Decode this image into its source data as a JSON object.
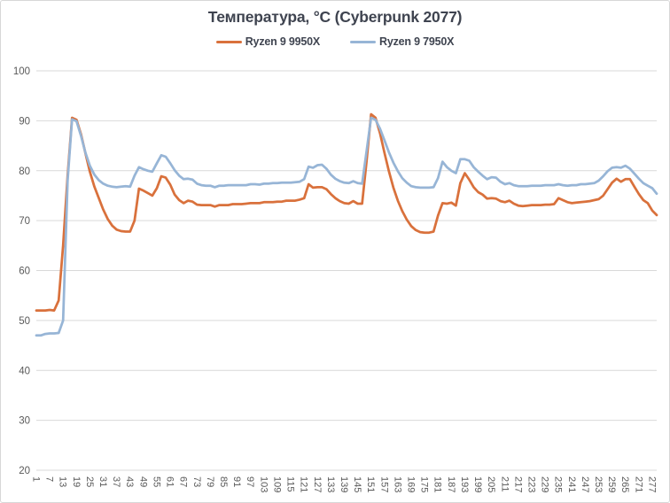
{
  "window": {
    "background_color": "#ffffff",
    "border_color": "#d7d7d7"
  },
  "chart_data": {
    "type": "line",
    "title": "Температура, °C (Cyberpunk 2077)",
    "xlabel": "",
    "ylabel": "",
    "legend_position": "top",
    "grid": "horizontal-only",
    "grid_color": "#d9d9d9",
    "axis_text_color": "#595959",
    "title_text_color": "#3f4450",
    "y_axis": {
      "min": 20,
      "max": 100,
      "tick_step": 10,
      "ticks": [
        20,
        30,
        40,
        50,
        60,
        70,
        80,
        90,
        100
      ]
    },
    "x_axis": {
      "min": 1,
      "max": 279,
      "tick_step": 6,
      "labels_rotated_deg": 90,
      "ticks": [
        1,
        7,
        13,
        19,
        25,
        31,
        37,
        43,
        49,
        55,
        61,
        67,
        73,
        79,
        85,
        91,
        97,
        103,
        109,
        115,
        121,
        127,
        133,
        139,
        145,
        151,
        157,
        163,
        169,
        175,
        181,
        187,
        193,
        199,
        205,
        211,
        217,
        223,
        229,
        235,
        241,
        247,
        253,
        259,
        265,
        271,
        277
      ]
    },
    "x": [
      1,
      3,
      5,
      7,
      9,
      11,
      13,
      15,
      17,
      19,
      21,
      23,
      25,
      27,
      29,
      31,
      33,
      35,
      37,
      39,
      41,
      43,
      45,
      47,
      49,
      51,
      53,
      55,
      57,
      59,
      61,
      63,
      65,
      67,
      69,
      71,
      73,
      75,
      77,
      79,
      81,
      83,
      85,
      87,
      89,
      91,
      93,
      95,
      97,
      99,
      101,
      103,
      105,
      107,
      109,
      111,
      113,
      115,
      117,
      119,
      121,
      123,
      125,
      127,
      129,
      131,
      133,
      135,
      137,
      139,
      141,
      143,
      145,
      147,
      149,
      151,
      153,
      155,
      157,
      159,
      161,
      163,
      165,
      167,
      169,
      171,
      173,
      175,
      177,
      179,
      181,
      183,
      185,
      187,
      189,
      191,
      193,
      195,
      197,
      199,
      201,
      203,
      205,
      207,
      209,
      211,
      213,
      215,
      217,
      219,
      221,
      223,
      225,
      227,
      229,
      231,
      233,
      235,
      237,
      239,
      241,
      243,
      245,
      247,
      249,
      251,
      253,
      255,
      257,
      259,
      261,
      263,
      265,
      267,
      269,
      271,
      273,
      275,
      277,
      279
    ],
    "series": [
      {
        "name": "Ryzen 9 9950X",
        "color": "#d9713c",
        "values": [
          52,
          52,
          52,
          52.1,
          52,
          54,
          65,
          79,
          90.6,
          90.2,
          87.3,
          83.5,
          79.8,
          76.8,
          74.5,
          72.2,
          70.3,
          69,
          68.2,
          67.9,
          67.8,
          67.8,
          70,
          76.4,
          76,
          75.5,
          75,
          76.5,
          78.9,
          78.6,
          77.2,
          75.2,
          74.1,
          73.5,
          74,
          73.8,
          73.2,
          73.1,
          73.1,
          73.1,
          72.8,
          73.1,
          73.1,
          73.1,
          73.3,
          73.3,
          73.3,
          73.4,
          73.5,
          73.5,
          73.5,
          73.7,
          73.7,
          73.7,
          73.8,
          73.8,
          74,
          74,
          74,
          74.2,
          74.5,
          77.3,
          76.6,
          76.7,
          76.7,
          76.3,
          75.3,
          74.5,
          73.9,
          73.5,
          73.4,
          73.9,
          73.4,
          73.4,
          82,
          91.3,
          90.6,
          87.5,
          83.6,
          79.9,
          76.6,
          74,
          71.9,
          70.2,
          68.9,
          68.1,
          67.7,
          67.6,
          67.6,
          67.8,
          71,
          73.5,
          73.4,
          73.6,
          73,
          77.5,
          79.5,
          78.2,
          76.7,
          75.7,
          75.2,
          74.4,
          74.5,
          74.4,
          73.9,
          73.7,
          74,
          73.4,
          73,
          72.9,
          73,
          73.1,
          73.1,
          73.1,
          73.2,
          73.2,
          73.3,
          74.5,
          74.1,
          73.7,
          73.5,
          73.6,
          73.7,
          73.8,
          73.9,
          74.1,
          74.3,
          75,
          76.3,
          77.6,
          78.4,
          77.8,
          78.3,
          78.3,
          76.8,
          75.3,
          74.1,
          73.5,
          72,
          71.1
        ]
      },
      {
        "name": "Ryzen 9 7950X",
        "color": "#97b5d6",
        "values": [
          47,
          47,
          47.3,
          47.4,
          47.4,
          47.5,
          50,
          78,
          90.3,
          89.9,
          87,
          83.6,
          81,
          79.2,
          78.1,
          77.4,
          77,
          76.8,
          76.7,
          76.8,
          76.9,
          76.8,
          79,
          80.7,
          80.3,
          80,
          79.8,
          81.5,
          83.1,
          82.8,
          81.5,
          80.1,
          79,
          78.3,
          78.4,
          78.2,
          77.4,
          77.1,
          77,
          77,
          76.7,
          77,
          77,
          77.1,
          77.1,
          77.1,
          77.1,
          77.1,
          77.3,
          77.3,
          77.2,
          77.4,
          77.4,
          77.5,
          77.5,
          77.6,
          77.6,
          77.6,
          77.7,
          77.8,
          78.3,
          80.8,
          80.6,
          81.1,
          81.2,
          80.4,
          79.2,
          78.4,
          77.9,
          77.6,
          77.5,
          77.9,
          77.5,
          77.4,
          84,
          90.6,
          90.2,
          88.4,
          86.1,
          83.7,
          81.6,
          79.9,
          78.5,
          77.6,
          76.9,
          76.7,
          76.6,
          76.6,
          76.6,
          76.7,
          78.5,
          81.8,
          80.7,
          80,
          79.5,
          82.3,
          82.3,
          82,
          80.7,
          79.8,
          79,
          78.3,
          78.7,
          78.6,
          77.8,
          77.3,
          77.5,
          77.1,
          76.9,
          76.9,
          76.9,
          77,
          77,
          77,
          77.1,
          77.1,
          77.1,
          77.3,
          77.1,
          77,
          77.1,
          77.1,
          77.3,
          77.3,
          77.4,
          77.5,
          78,
          78.9,
          79.9,
          80.6,
          80.7,
          80.6,
          81,
          80.4,
          79.4,
          78.4,
          77.5,
          77,
          76.5,
          75.4
        ]
      }
    ]
  }
}
